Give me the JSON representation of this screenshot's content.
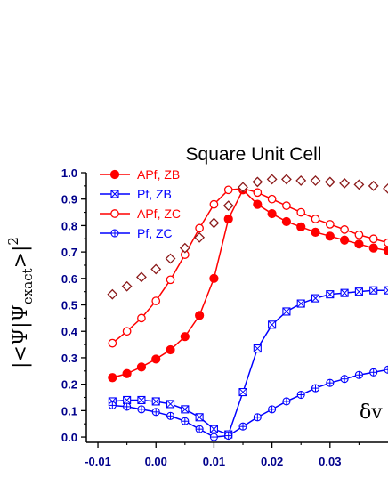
{
  "chart_data": {
    "type": "line",
    "title": "Square Unit Cell",
    "xlabel": "",
    "ylabel": "|<Ψ|Ψexact>|²",
    "ylabel_parts": {
      "open": "|<Ψ|Ψ",
      "sub": "exact",
      "close": ">|",
      "sup": "2"
    },
    "annotation": "δv",
    "xlim": [
      -0.012,
      0.04
    ],
    "ylim": [
      -0.02,
      1.0
    ],
    "xticks": [
      -0.01,
      0.0,
      0.01,
      0.02,
      0.03
    ],
    "xtick_labels": [
      "-0.01",
      "0.00",
      "0.01",
      "0.02",
      "0.03"
    ],
    "yticks": [
      0.0,
      0.1,
      0.2,
      0.3,
      0.4,
      0.5,
      0.6,
      0.7,
      0.8,
      0.9,
      1.0
    ],
    "ytick_labels": [
      "0.0",
      "0.1",
      "0.2",
      "0.3",
      "0.4",
      "0.5",
      "0.6",
      "0.7",
      "0.8",
      "0.9",
      "1.0"
    ],
    "legend_position": "top-left",
    "grid": false,
    "series": [
      {
        "name": "APf, ZB",
        "color": "#ff0000",
        "marker": "filled-circle",
        "line": true,
        "x": [
          -0.0075,
          -0.005,
          -0.0025,
          0.0,
          0.0025,
          0.005,
          0.0075,
          0.01,
          0.0125,
          0.015,
          0.0175,
          0.02,
          0.0225,
          0.025,
          0.0275,
          0.03,
          0.0325,
          0.035,
          0.0375,
          0.04
        ],
        "y": [
          0.225,
          0.24,
          0.265,
          0.295,
          0.33,
          0.38,
          0.46,
          0.6,
          0.825,
          0.935,
          0.88,
          0.845,
          0.815,
          0.795,
          0.775,
          0.76,
          0.745,
          0.73,
          0.715,
          0.705
        ]
      },
      {
        "name": "Pf, ZB",
        "color": "#0000ff",
        "marker": "crossed-square",
        "line": true,
        "x": [
          -0.0075,
          -0.005,
          -0.0025,
          0.0,
          0.0025,
          0.005,
          0.0075,
          0.01,
          0.0125,
          0.015,
          0.0175,
          0.02,
          0.0225,
          0.025,
          0.0275,
          0.03,
          0.0325,
          0.035,
          0.0375,
          0.04
        ],
        "y": [
          0.135,
          0.14,
          0.14,
          0.135,
          0.125,
          0.105,
          0.075,
          0.03,
          0.01,
          0.17,
          0.335,
          0.425,
          0.475,
          0.505,
          0.525,
          0.54,
          0.545,
          0.55,
          0.555,
          0.555
        ]
      },
      {
        "name": "APf, ZC",
        "color": "#ff0000",
        "marker": "open-circle",
        "line": true,
        "x": [
          -0.0075,
          -0.005,
          -0.0025,
          0.0,
          0.0025,
          0.005,
          0.0075,
          0.01,
          0.0125,
          0.015,
          0.0175,
          0.02,
          0.0225,
          0.025,
          0.0275,
          0.03,
          0.0325,
          0.035,
          0.0375,
          0.04
        ],
        "y": [
          0.355,
          0.4,
          0.45,
          0.515,
          0.595,
          0.69,
          0.79,
          0.88,
          0.935,
          0.94,
          0.925,
          0.9,
          0.875,
          0.85,
          0.825,
          0.805,
          0.785,
          0.765,
          0.75,
          0.735
        ]
      },
      {
        "name": "Pf, ZC",
        "color": "#0000ff",
        "marker": "crossed-circle",
        "line": true,
        "x": [
          -0.0075,
          -0.005,
          -0.0025,
          0.0,
          0.0025,
          0.005,
          0.0075,
          0.01,
          0.0125,
          0.015,
          0.0175,
          0.02,
          0.0225,
          0.025,
          0.0275,
          0.03,
          0.0325,
          0.035,
          0.0375,
          0.04
        ],
        "y": [
          0.12,
          0.115,
          0.105,
          0.095,
          0.08,
          0.06,
          0.03,
          0.0,
          0.005,
          0.04,
          0.075,
          0.105,
          0.135,
          0.16,
          0.185,
          0.205,
          0.22,
          0.235,
          0.245,
          0.255
        ]
      },
      {
        "name": "",
        "color": "#8b1a1a",
        "marker": "open-diamond",
        "line": false,
        "x": [
          -0.0075,
          -0.005,
          -0.0025,
          0.0,
          0.0025,
          0.005,
          0.0075,
          0.01,
          0.0125,
          0.015,
          0.0175,
          0.02,
          0.0225,
          0.025,
          0.0275,
          0.03,
          0.0325,
          0.035,
          0.0375,
          0.04
        ],
        "y": [
          0.54,
          0.57,
          0.605,
          0.635,
          0.675,
          0.715,
          0.755,
          0.81,
          0.875,
          0.945,
          0.965,
          0.975,
          0.975,
          0.97,
          0.97,
          0.965,
          0.96,
          0.955,
          0.95,
          0.94
        ]
      }
    ]
  }
}
